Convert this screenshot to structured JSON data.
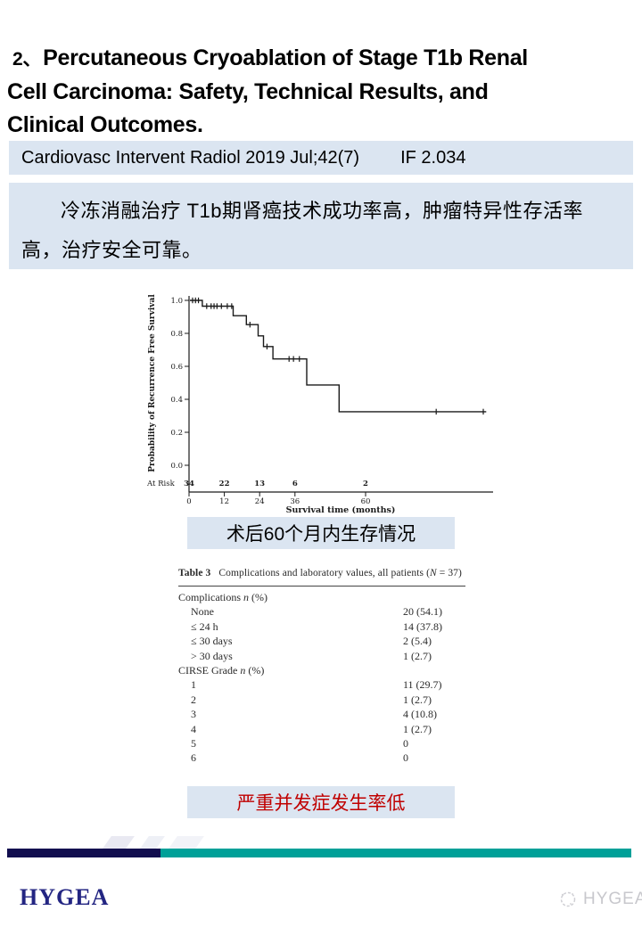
{
  "colors": {
    "light_blue": "#dbe5f1",
    "red_text": "#c00000",
    "navy_bar": "#120e4f",
    "teal_bar": "#00a098",
    "logo_navy": "#232582",
    "watermark_gray": "#c8c8cd",
    "chart_ink": "#1a1a1a"
  },
  "slide": {
    "title_number": "2、",
    "title_lines": [
      "Percutaneous Cryoablation of Stage T1b Renal",
      "Cell Carcinoma: Safety, Technical Results, and",
      "Clinical Outcomes."
    ],
    "journal": "Cardiovasc Intervent Radiol 2019 Jul;42(7)",
    "impact_factor": "IF 2.034",
    "summary": "冷冻消融治疗 T1b期肾癌技术成功率高，肿瘤特异性存活率高，治疗安全可靠。",
    "caption_survival": "术后60个月内生存情况",
    "caption_complications": "严重并发症发生率低"
  },
  "chart_data": {
    "type": "line",
    "subtype": "kaplan-meier-step",
    "title": "",
    "xlabel": "Survival time (months)",
    "ylabel": "Probability of Recurrence Free Survival",
    "xlim": [
      0,
      101
    ],
    "ylim": [
      0.0,
      1.0
    ],
    "xticks": [
      0,
      12,
      24,
      36,
      60
    ],
    "yticks": [
      0.0,
      0.2,
      0.4,
      0.6,
      0.8,
      1.0
    ],
    "grid": false,
    "legend": "none",
    "at_risk_label": "At Risk",
    "at_risk": [
      {
        "x": 0,
        "n": 34
      },
      {
        "x": 12,
        "n": 22
      },
      {
        "x": 24,
        "n": 13
      },
      {
        "x": 36,
        "n": 6
      },
      {
        "x": 60,
        "n": 2
      }
    ],
    "steps": [
      [
        0.3,
        1.0
      ],
      [
        4.5,
        1.0
      ],
      [
        4.5,
        0.965
      ],
      [
        15,
        0.965
      ],
      [
        15,
        0.907
      ],
      [
        19.5,
        0.907
      ],
      [
        19.5,
        0.853
      ],
      [
        23.5,
        0.853
      ],
      [
        23.5,
        0.785
      ],
      [
        25.3,
        0.785
      ],
      [
        25.3,
        0.72
      ],
      [
        28.5,
        0.72
      ],
      [
        28.5,
        0.645
      ],
      [
        40,
        0.645
      ],
      [
        40,
        0.487
      ],
      [
        51,
        0.487
      ],
      [
        51,
        0.325
      ],
      [
        101,
        0.325
      ]
    ],
    "censors": [
      [
        1.2,
        1.0
      ],
      [
        2.2,
        1.0
      ],
      [
        3.2,
        1.0
      ],
      [
        6,
        0.965
      ],
      [
        7.5,
        0.965
      ],
      [
        8.5,
        0.965
      ],
      [
        9.5,
        0.965
      ],
      [
        11,
        0.965
      ],
      [
        13,
        0.965
      ],
      [
        14.5,
        0.965
      ],
      [
        20.7,
        0.853
      ],
      [
        26.5,
        0.72
      ],
      [
        34,
        0.645
      ],
      [
        35.5,
        0.645
      ],
      [
        37.5,
        0.645
      ],
      [
        84,
        0.325
      ],
      [
        100,
        0.325
      ]
    ]
  },
  "table": {
    "caption_label": "Table 3",
    "caption_text": "Complications and laboratory values, all patients (N = 37)",
    "rows": [
      {
        "label": "Complications n (%)",
        "value": "",
        "indent": false
      },
      {
        "label": "None",
        "value": "20 (54.1)",
        "indent": true
      },
      {
        "label": "≤ 24 h",
        "value": "14 (37.8)",
        "indent": true
      },
      {
        "label": "≤ 30 days",
        "value": "2 (5.4)",
        "indent": true
      },
      {
        "label": "> 30 days",
        "value": "1 (2.7)",
        "indent": true
      },
      {
        "label": "CIRSE Grade n (%)",
        "value": "",
        "indent": false
      },
      {
        "label": "1",
        "value": "11 (29.7)",
        "indent": true
      },
      {
        "label": "2",
        "value": "1 (2.7)",
        "indent": true
      },
      {
        "label": "3",
        "value": "4 (10.8)",
        "indent": true
      },
      {
        "label": "4",
        "value": "1 (2.7)",
        "indent": true
      },
      {
        "label": "5",
        "value": "0",
        "indent": true
      },
      {
        "label": "6",
        "value": "0",
        "indent": true
      }
    ]
  },
  "footer": {
    "logo_text": "HYGEA",
    "watermark_text": "HYGEA"
  }
}
